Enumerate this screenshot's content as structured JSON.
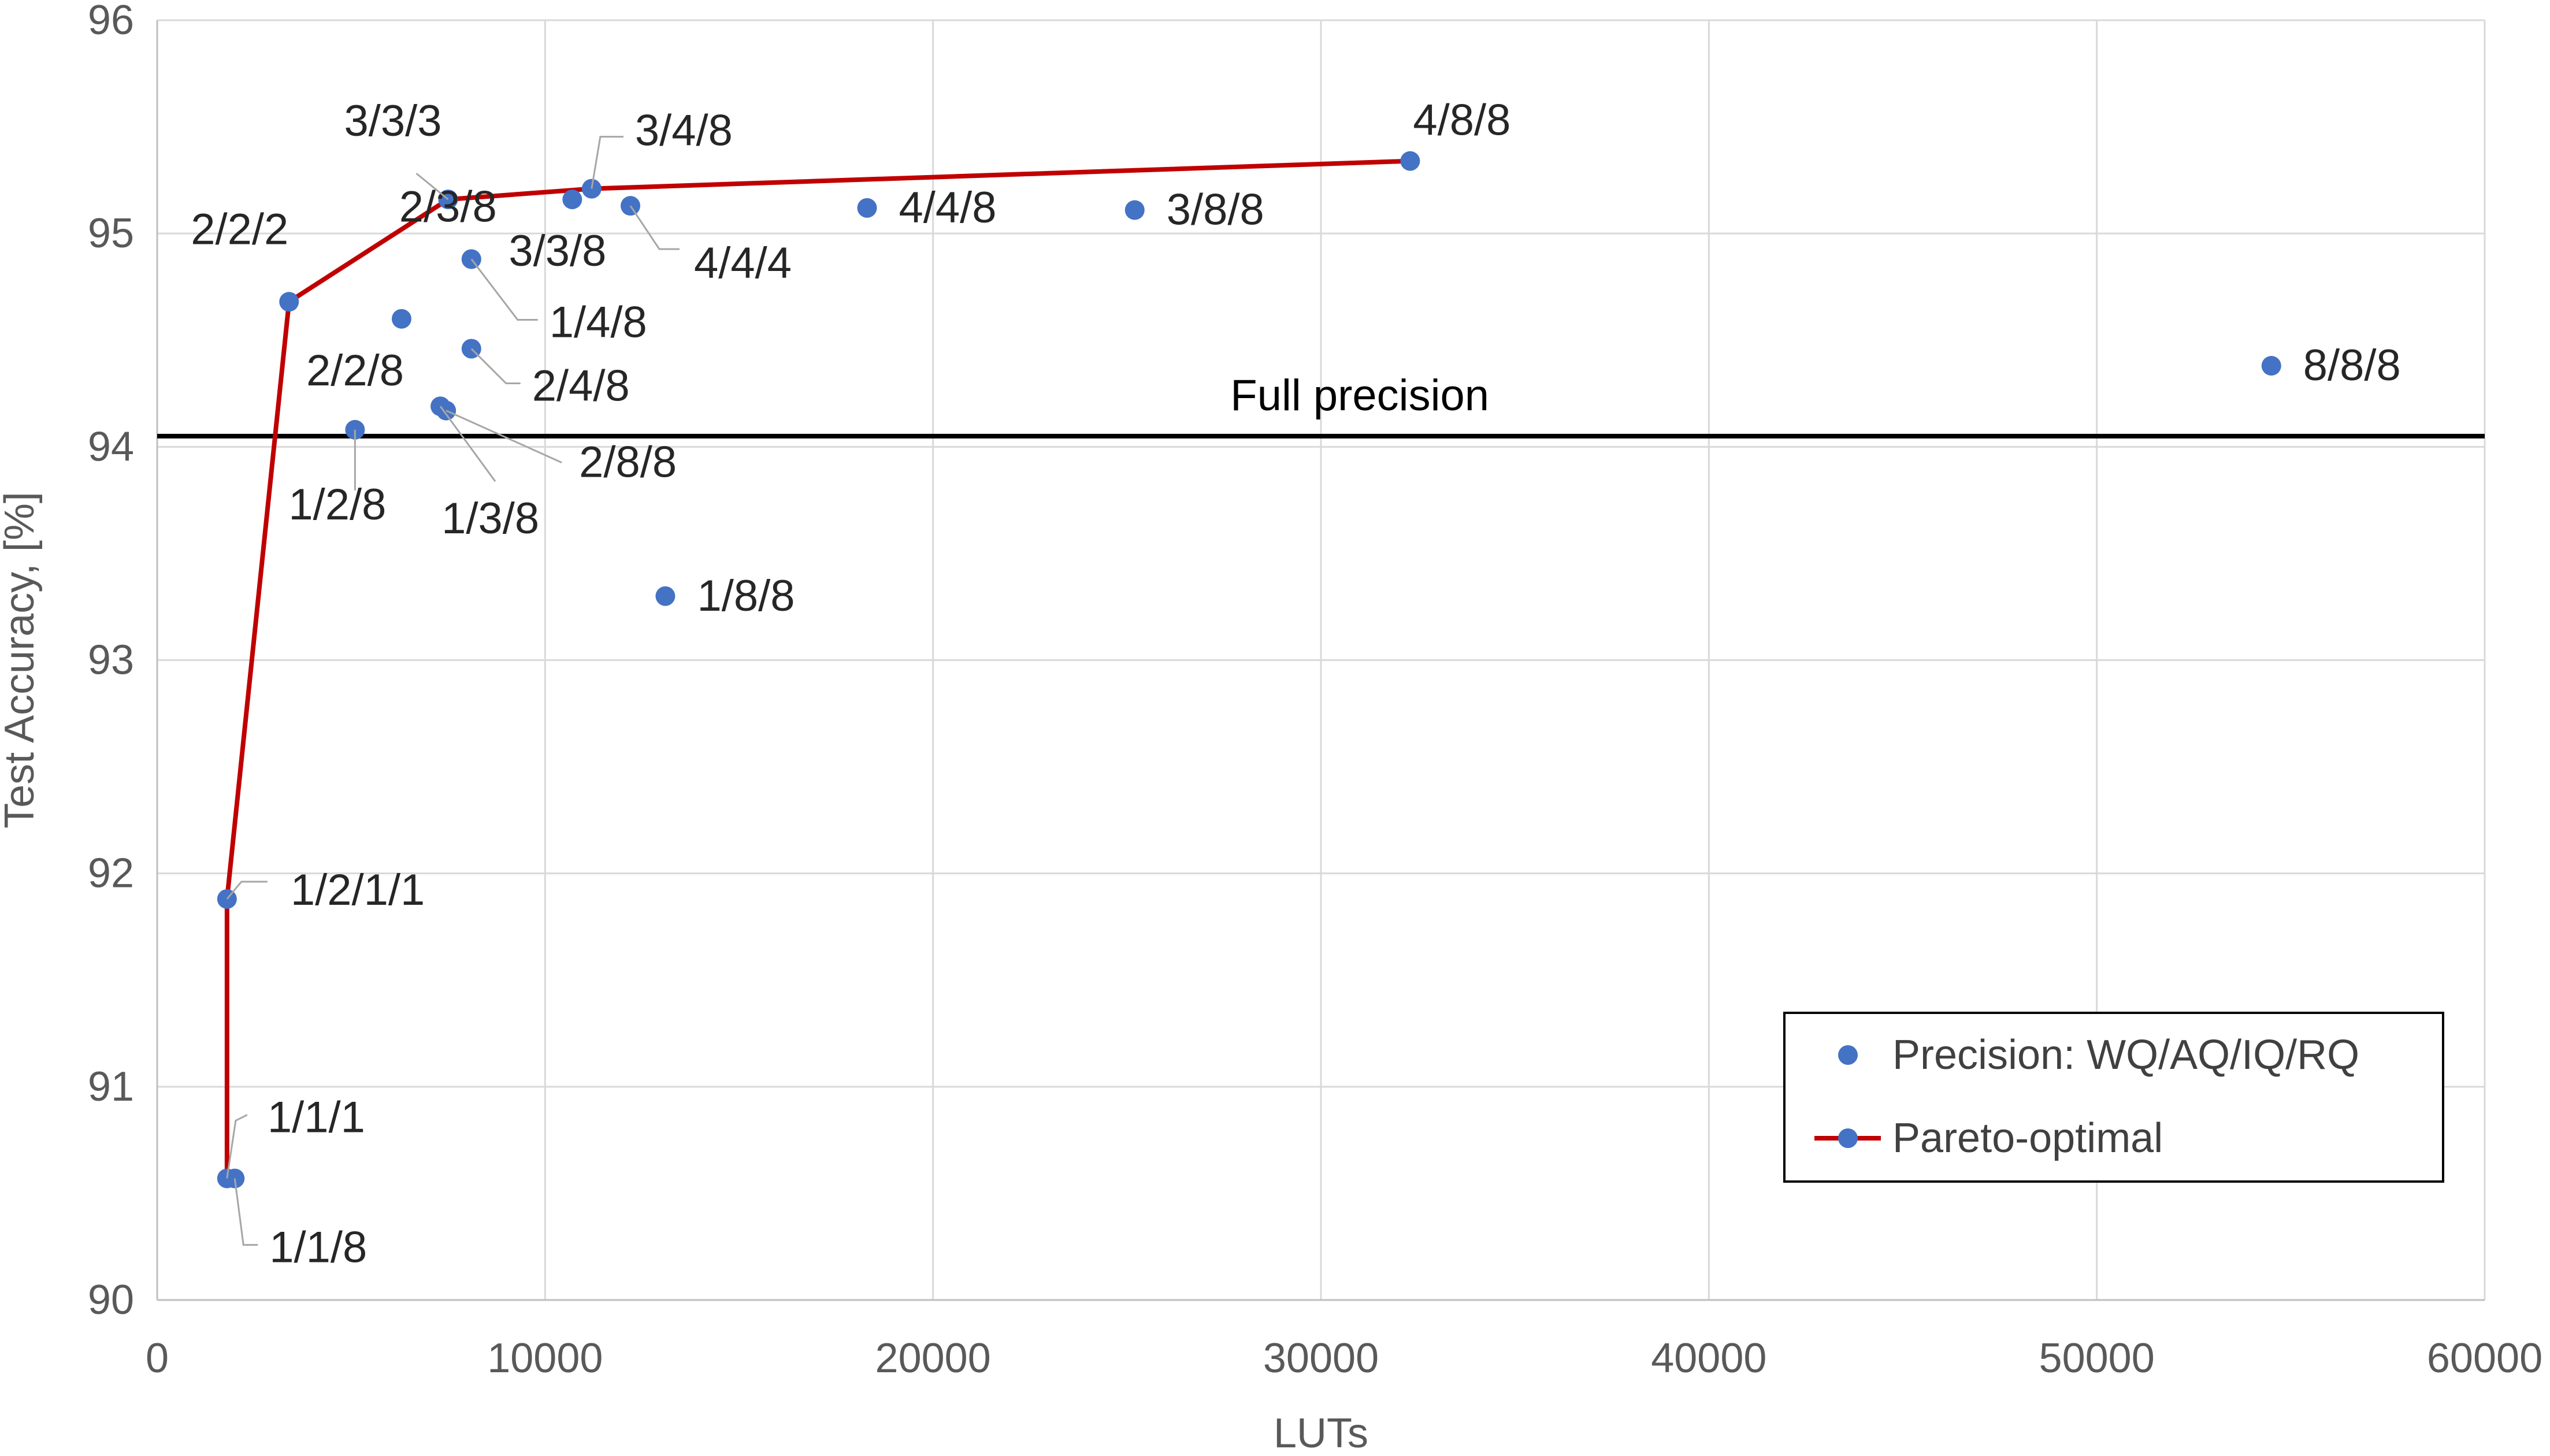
{
  "chart_data": {
    "type": "scatter",
    "xlabel": "LUTs",
    "ylabel": "Test Accuracy, [%]",
    "xlim": [
      0,
      60000
    ],
    "ylim": [
      90,
      96
    ],
    "xticks": [
      0,
      10000,
      20000,
      30000,
      40000,
      50000,
      60000
    ],
    "yticks": [
      90,
      91,
      92,
      93,
      94,
      95,
      96
    ],
    "grid": true,
    "legend_position": "bottom-right",
    "colors": {
      "point": "#4472c4",
      "pareto": "#c00000",
      "reference": "#000000"
    },
    "reference_line": {
      "label": "Full precision",
      "y": 94.05
    },
    "series": [
      {
        "name": "Precision: WQ/AQ/IQ/RQ",
        "points": [
          {
            "x": 1800,
            "y": 90.57,
            "label": "1/1/1"
          },
          {
            "x": 2000,
            "y": 90.57,
            "label": "1/1/8"
          },
          {
            "x": 1800,
            "y": 91.88,
            "label": "1/2/1/1"
          },
          {
            "x": 3400,
            "y": 94.68,
            "label": "2/2/2"
          },
          {
            "x": 6300,
            "y": 94.6,
            "label": "2/2/8"
          },
          {
            "x": 5100,
            "y": 94.08,
            "label": "1/2/8"
          },
          {
            "x": 8100,
            "y": 94.88,
            "label": "2/3/8"
          },
          {
            "x": 8100,
            "y": 94.46,
            "label": "2/4/8"
          },
          {
            "x": 7300,
            "y": 94.19,
            "label": "1/3/8"
          },
          {
            "x": 7450,
            "y": 94.17,
            "label": "2/8/8"
          },
          {
            "x": 7500,
            "y": 95.16,
            "label": "3/3/3"
          },
          {
            "x": 10700,
            "y": 95.16,
            "label": "3/3/8"
          },
          {
            "x": 11200,
            "y": 95.21,
            "label": "3/4/8"
          },
          {
            "x": 12200,
            "y": 95.13,
            "label": "4/4/4"
          },
          {
            "x": 18300,
            "y": 95.12,
            "label": "4/4/8"
          },
          {
            "x": 25200,
            "y": 95.11,
            "label": "3/8/8"
          },
          {
            "x": 32300,
            "y": 95.34,
            "label": "4/8/8"
          },
          {
            "x": 13100,
            "y": 93.3,
            "label": "1/8/8"
          },
          {
            "x": 54500,
            "y": 94.38,
            "label": "8/8/8"
          },
          {
            "x": 8100,
            "y": 94.88,
            "label": "1/4/8"
          }
        ]
      },
      {
        "name": "Pareto-optimal",
        "x": [
          1800,
          1800,
          3400,
          7500,
          11200,
          32300
        ],
        "y": [
          90.57,
          91.88,
          94.68,
          95.16,
          95.21,
          95.34
        ]
      }
    ]
  }
}
